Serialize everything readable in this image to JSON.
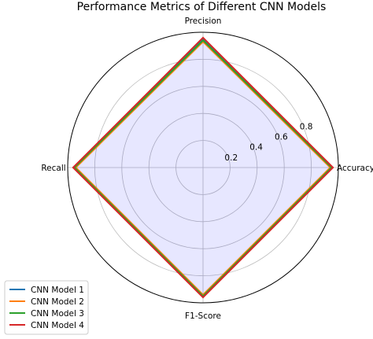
{
  "chart_data": {
    "type": "radar",
    "title": "Performance Metrics of Different CNN Models",
    "axes": [
      "Accuracy",
      "Precision",
      "Recall",
      "F1-Score"
    ],
    "rlim": [
      0,
      1.0
    ],
    "r_ticks": [
      0.2,
      0.4,
      0.6,
      0.8
    ],
    "grid": true,
    "legend_position": "lower-left",
    "series": [
      {
        "name": "CNN Model 1",
        "values": [
          0.95,
          0.95,
          0.95,
          0.95
        ],
        "color": "#1f77b4"
      },
      {
        "name": "CNN Model 2",
        "values": [
          0.94,
          0.93,
          0.94,
          0.94
        ],
        "color": "#ff7f0e"
      },
      {
        "name": "CNN Model 3",
        "values": [
          0.95,
          0.94,
          0.95,
          0.95
        ],
        "color": "#2ca02c"
      },
      {
        "name": "CNN Model 4",
        "values": [
          0.96,
          0.96,
          0.96,
          0.96
        ],
        "color": "#d62728"
      }
    ],
    "fill_color": "#0000ff"
  }
}
